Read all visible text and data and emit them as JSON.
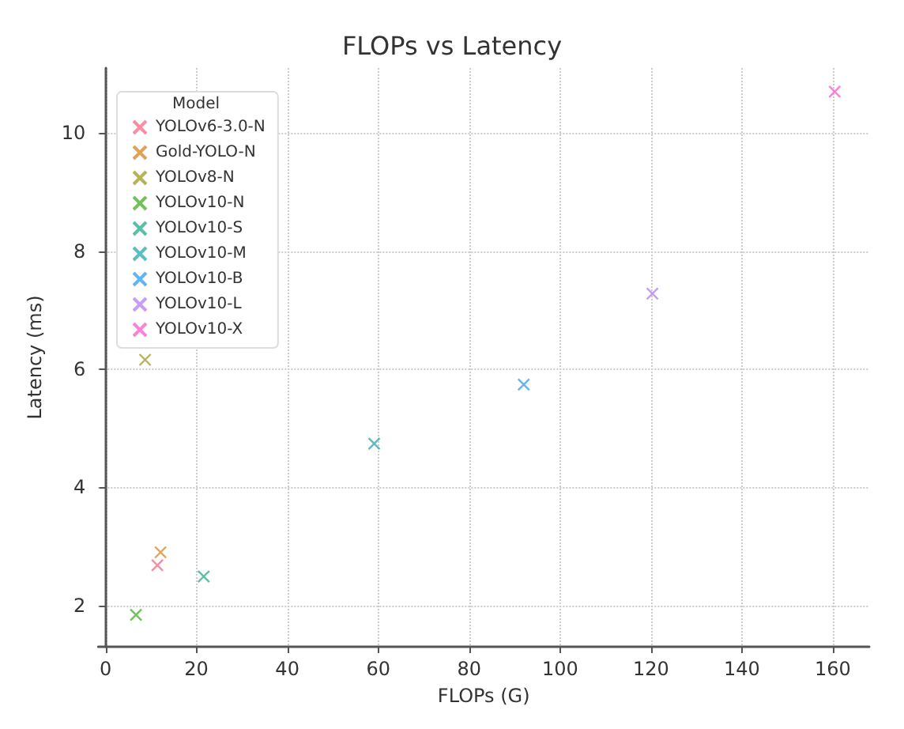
{
  "chart_data": {
    "type": "scatter",
    "title": "FLOPs vs Latency",
    "xlabel": "FLOPs (G)",
    "ylabel": "Latency (ms)",
    "legend_title": "Model",
    "legend": "top left",
    "grid": true,
    "marker": "cross",
    "xlim": [
      -1.6,
      168
    ],
    "xticks": [
      0,
      20,
      40,
      60,
      80,
      100,
      120,
      140,
      160
    ],
    "ylim": [
      1.3,
      11.1
    ],
    "yticks": [
      2,
      4,
      6,
      8,
      10
    ],
    "series": [
      {
        "name": "YOLOv6-3.0-N",
        "color": "#f77189",
        "x": [
          11.4
        ],
        "values": [
          2.68
        ]
      },
      {
        "name": "Gold-YOLO-N",
        "color": "#d58c32",
        "x": [
          12.1
        ],
        "values": [
          2.9
        ]
      },
      {
        "name": "YOLOv8-N",
        "color": "#a4a031",
        "x": [
          8.7
        ],
        "values": [
          6.16
        ]
      },
      {
        "name": "YOLOv10-N",
        "color": "#50b131",
        "x": [
          6.7
        ],
        "values": [
          1.84
        ]
      },
      {
        "name": "YOLOv10-S",
        "color": "#34ae91",
        "x": [
          21.6
        ],
        "values": [
          2.49
        ]
      },
      {
        "name": "YOLOv10-M",
        "color": "#37abb5",
        "x": [
          59.1
        ],
        "values": [
          4.74
        ]
      },
      {
        "name": "YOLOv10-B",
        "color": "#3ba3ec",
        "x": [
          92
        ],
        "values": [
          5.74
        ]
      },
      {
        "name": "YOLOv10-L",
        "color": "#bb83f4",
        "x": [
          120.3
        ],
        "values": [
          7.28
        ]
      },
      {
        "name": "YOLOv10-X",
        "color": "#f564d4",
        "x": [
          160.4
        ],
        "values": [
          10.7
        ]
      }
    ]
  }
}
